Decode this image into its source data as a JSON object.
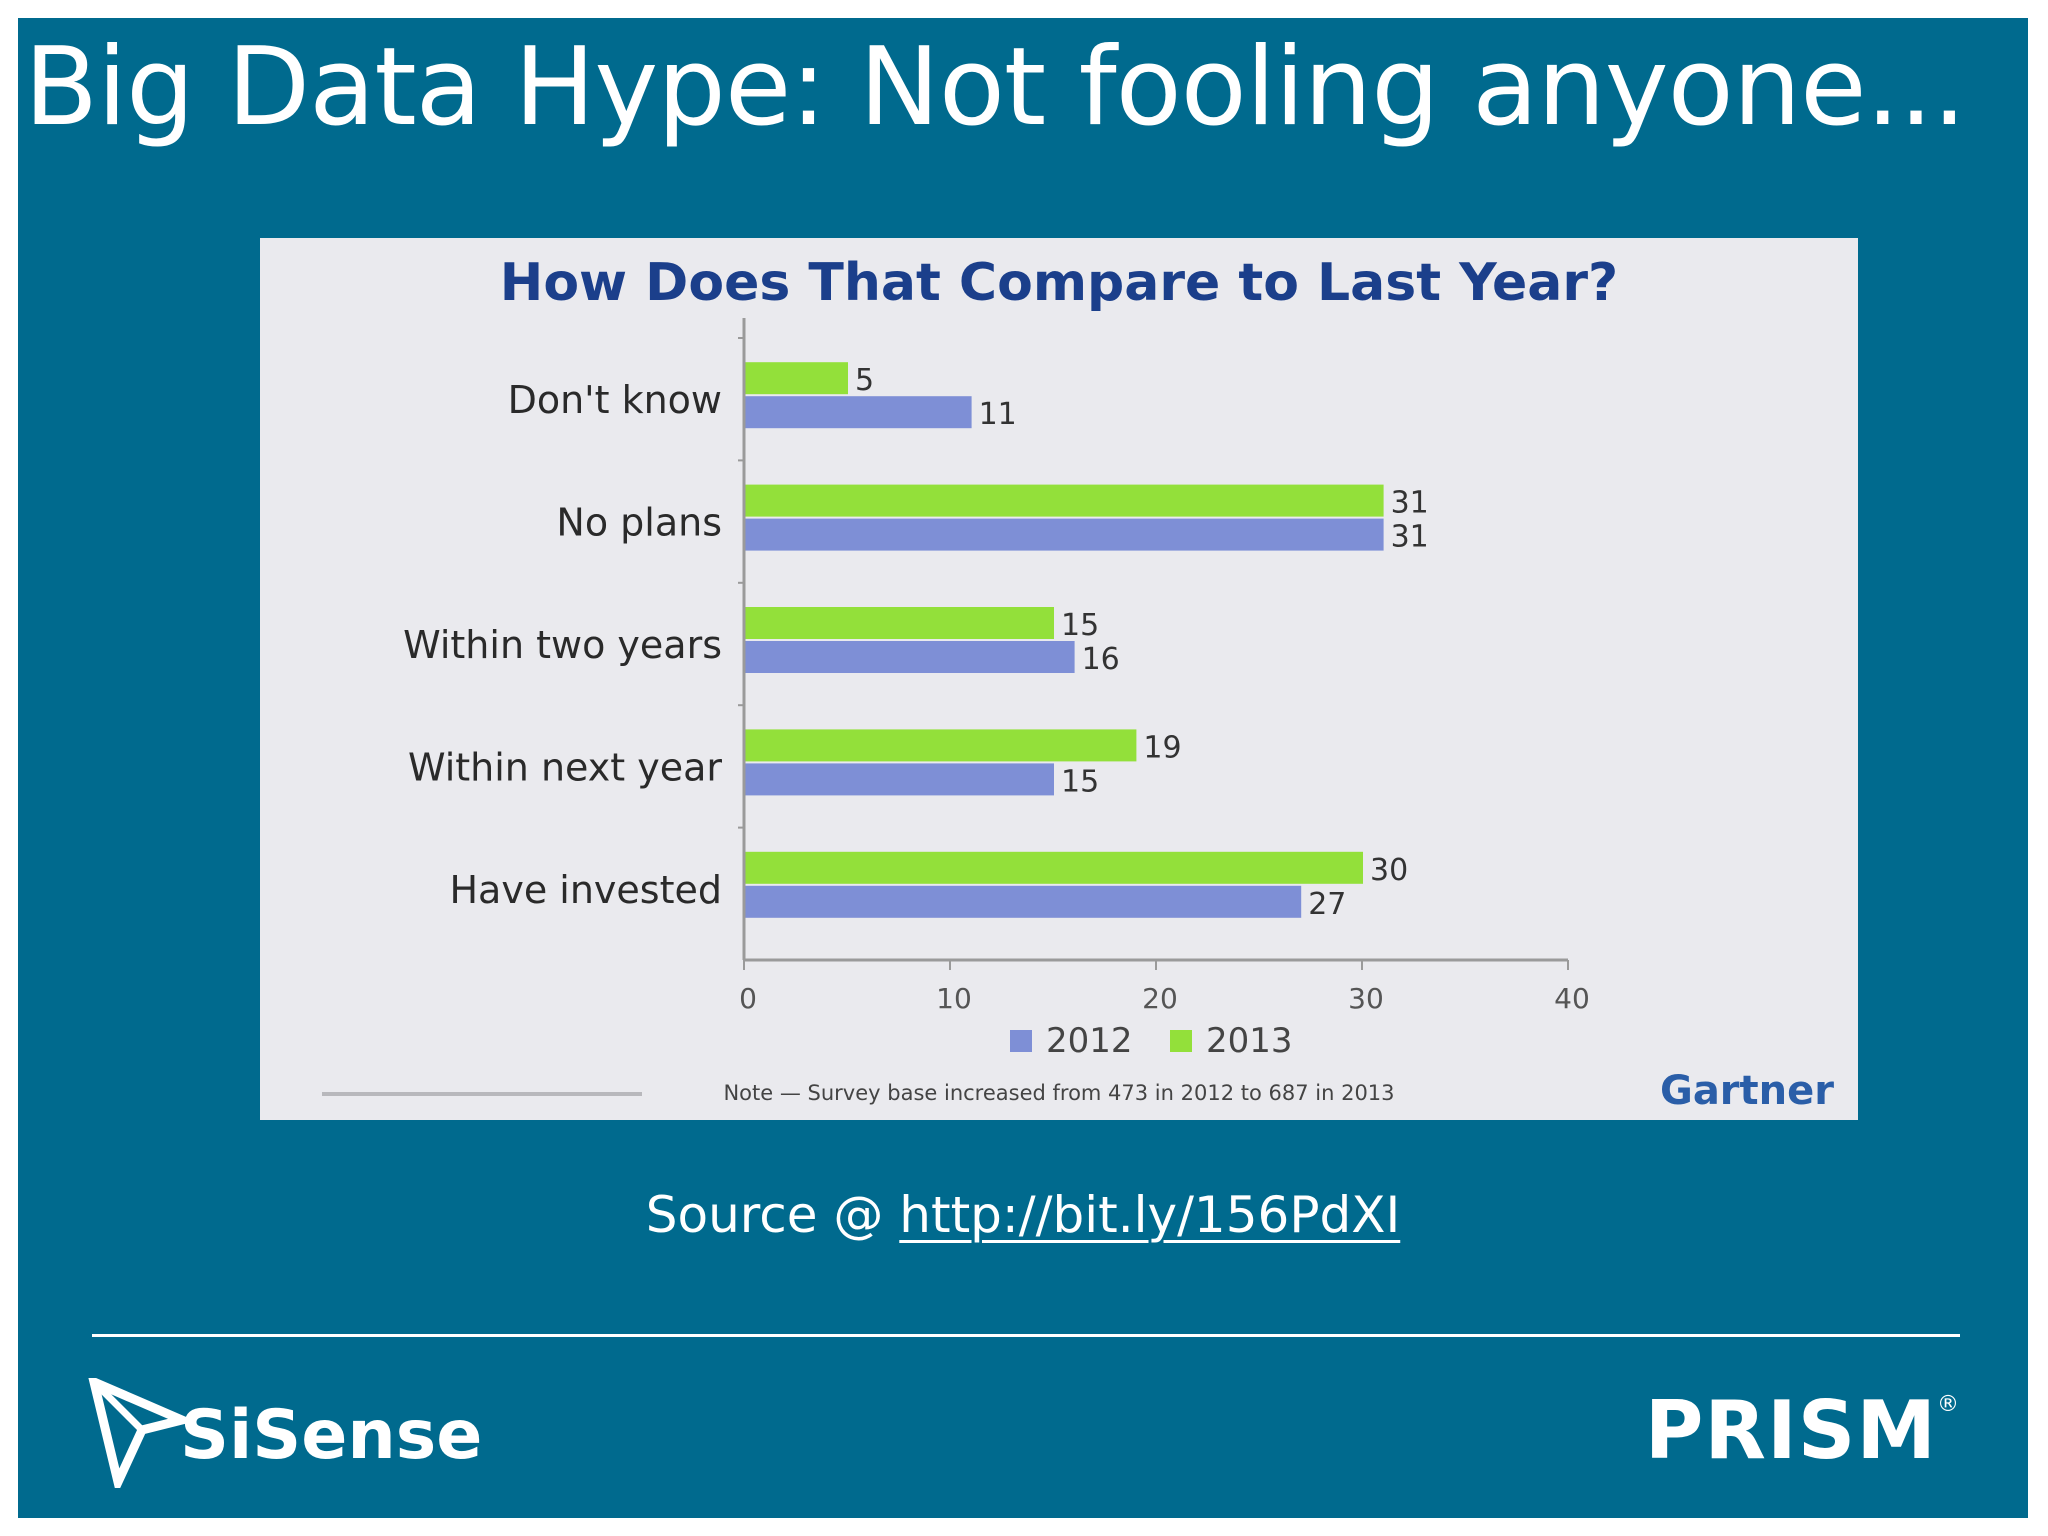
{
  "slide": {
    "title": "Big Data Hype: Not fooling anyone...",
    "source_prefix": "Source @ ",
    "source_link": "http://bit.ly/156PdXI",
    "logo_left": "SiSense",
    "logo_right": "PRISM",
    "logo_right_mark": "®"
  },
  "colors": {
    "background": "#006a8e",
    "panel": "#eaeaee",
    "series_2012": "#7e8fd6",
    "series_2013": "#93e03a",
    "title_blue": "#1b3f8b"
  },
  "chart_data": {
    "type": "bar",
    "orientation": "horizontal",
    "title": "How Does That Compare to Last Year?",
    "categories": [
      "Don't know",
      "No plans",
      "Within two years",
      "Within next year",
      "Have invested"
    ],
    "series": [
      {
        "name": "2013",
        "values": [
          5,
          31,
          15,
          19,
          30
        ]
      },
      {
        "name": "2012",
        "values": [
          11,
          31,
          16,
          15,
          27
        ]
      }
    ],
    "xlim": [
      0,
      40
    ],
    "xticks": [
      0,
      10,
      20,
      30,
      40
    ],
    "legend": [
      {
        "name": "2012"
      },
      {
        "name": "2013"
      }
    ],
    "legend_position": "bottom",
    "grid": false,
    "note": "Note — Survey base increased from 473 in 2012 to 687 in 2013",
    "brand": "Gartner"
  }
}
